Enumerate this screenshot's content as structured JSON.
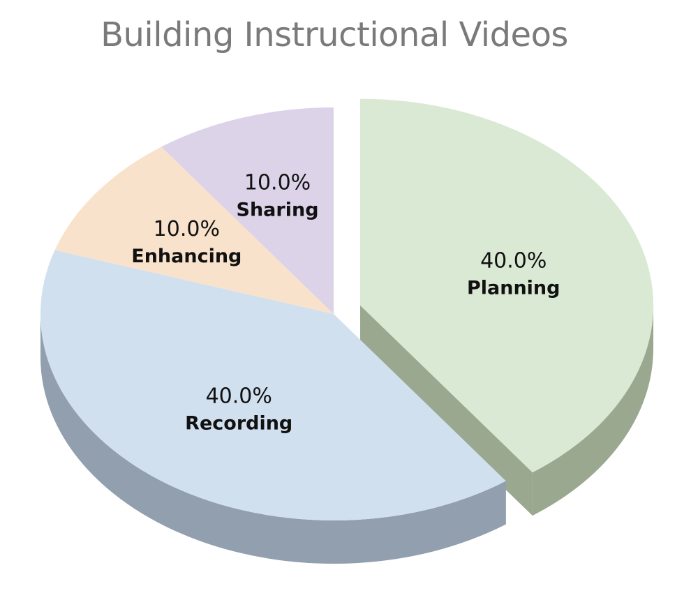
{
  "chart_data": {
    "type": "pie",
    "title": "Building Instructional Videos",
    "slices": [
      {
        "label": "Planning",
        "value": 40.0,
        "display": "40.0%",
        "color": "#d9e9d4",
        "side_color": "#9aa890",
        "exploded": true
      },
      {
        "label": "Recording",
        "value": 40.0,
        "display": "40.0%",
        "color": "#d1e0ef",
        "side_color": "#919fae",
        "exploded": false
      },
      {
        "label": "Enhancing",
        "value": 10.0,
        "display": "10.0%",
        "color": "#f9e2cb",
        "side_color": "#c8b49f",
        "exploded": false
      },
      {
        "label": "Sharing",
        "value": 10.0,
        "display": "10.0%",
        "color": "#dcd3e8",
        "side_color": "#a9a1b6",
        "exploded": false
      }
    ],
    "style": "3d-exploded"
  }
}
